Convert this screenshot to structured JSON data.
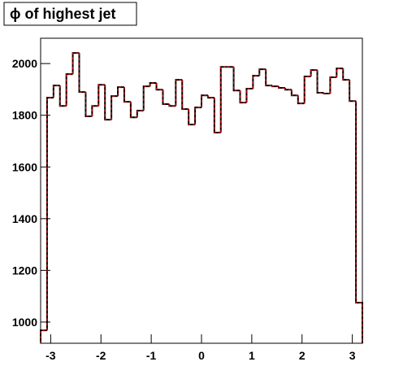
{
  "chart_data": {
    "type": "histogram",
    "title": "ϕ of highest jet",
    "bins": [
      -3.2,
      -3.072,
      -2.944,
      -2.816,
      -2.688,
      -2.56,
      -2.432,
      -2.304,
      -2.176,
      -2.048,
      -1.92,
      -1.792,
      -1.664,
      -1.536,
      -1.408,
      -1.28,
      -1.152,
      -1.024,
      -0.896,
      -0.768,
      -0.64,
      -0.512,
      -0.384,
      -0.256,
      -0.128,
      0,
      0.128,
      0.256,
      0.384,
      0.512,
      0.64,
      0.768,
      0.896,
      1.024,
      1.152,
      1.28,
      1.408,
      1.536,
      1.664,
      1.792,
      1.92,
      2.048,
      2.176,
      2.304,
      2.432,
      2.56,
      2.688,
      2.816,
      2.944,
      3.072,
      3.2
    ],
    "values": [
      968,
      1868,
      1915,
      1836,
      1959,
      2041,
      1890,
      1796,
      1836,
      1918,
      1783,
      1874,
      1909,
      1852,
      1792,
      1818,
      1912,
      1925,
      1899,
      1843,
      1836,
      1937,
      1824,
      1764,
      1830,
      1877,
      1868,
      1733,
      1987,
      1987,
      1896,
      1849,
      1903,
      1953,
      1978,
      1915,
      1912,
      1906,
      1899,
      1877,
      1846,
      1950,
      1975,
      1887,
      1884,
      1947,
      1981,
      1937,
      1855,
      1075
    ],
    "color": "#000000",
    "dash_color": "#cc0000",
    "xlim": [
      -3.2,
      3.2
    ],
    "xticks": [
      -3,
      -2,
      -1,
      0,
      1,
      2,
      3
    ],
    "ylim": [
      918,
      2098
    ],
    "yticks": [
      1000,
      1200,
      1400,
      1600,
      1800,
      2000
    ]
  }
}
